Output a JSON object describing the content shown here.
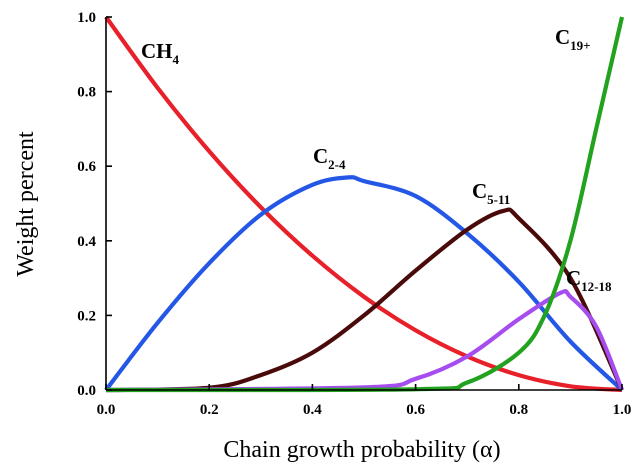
{
  "chart_data": {
    "type": "line",
    "xlabel": "Chain growth probability (α)",
    "ylabel": "Weight percent",
    "xlim": [
      0.0,
      1.0
    ],
    "ylim": [
      0.0,
      1.0
    ],
    "x_ticks": [
      "0.0",
      "0.2",
      "0.4",
      "0.6",
      "0.8",
      "1.0"
    ],
    "y_ticks": [
      "0.0",
      "0.2",
      "0.4",
      "0.6",
      "0.8",
      "1.0"
    ],
    "grid": false,
    "legend": "none (curves labeled directly)",
    "series": [
      {
        "name": "CH4",
        "label_main": "CH",
        "label_sub": "4",
        "color": "#e8202a",
        "x": [
          0.0,
          0.1,
          0.2,
          0.3,
          0.4,
          0.5,
          0.6,
          0.7,
          0.8,
          0.9,
          1.0
        ],
        "values": [
          1.0,
          0.81,
          0.64,
          0.49,
          0.36,
          0.25,
          0.16,
          0.09,
          0.04,
          0.01,
          0.0
        ]
      },
      {
        "name": "C2-4",
        "label_main": "C",
        "label_sub": "2-4",
        "color": "#2457e6",
        "x": [
          0.0,
          0.1,
          0.2,
          0.3,
          0.4,
          0.47,
          0.5,
          0.6,
          0.7,
          0.8,
          0.9,
          1.0
        ],
        "values": [
          0.0,
          0.18,
          0.34,
          0.47,
          0.55,
          0.57,
          0.56,
          0.52,
          0.42,
          0.29,
          0.13,
          0.0
        ]
      },
      {
        "name": "C5-11",
        "label_main": "C",
        "label_sub": "5-11",
        "color": "#4a0a0a",
        "x": [
          0.0,
          0.2,
          0.3,
          0.4,
          0.5,
          0.6,
          0.7,
          0.77,
          0.8,
          0.9,
          1.0
        ],
        "values": [
          0.0,
          0.006,
          0.04,
          0.1,
          0.2,
          0.32,
          0.43,
          0.48,
          0.46,
          0.3,
          0.0
        ]
      },
      {
        "name": "C12-18",
        "label_main": "C",
        "label_sub": "12-18",
        "color": "#a64df0",
        "x": [
          0.0,
          0.5,
          0.6,
          0.7,
          0.8,
          0.88,
          0.9,
          0.95,
          1.0
        ],
        "values": [
          0.0,
          0.007,
          0.03,
          0.09,
          0.19,
          0.26,
          0.25,
          0.17,
          0.0
        ]
      },
      {
        "name": "C19+",
        "label_main": "C",
        "label_sub": "19+",
        "color": "#22a21e",
        "x": [
          0.0,
          0.6,
          0.7,
          0.8,
          0.85,
          0.9,
          0.95,
          1.0
        ],
        "values": [
          0.0,
          0.002,
          0.02,
          0.1,
          0.2,
          0.4,
          0.7,
          1.0
        ]
      }
    ]
  }
}
